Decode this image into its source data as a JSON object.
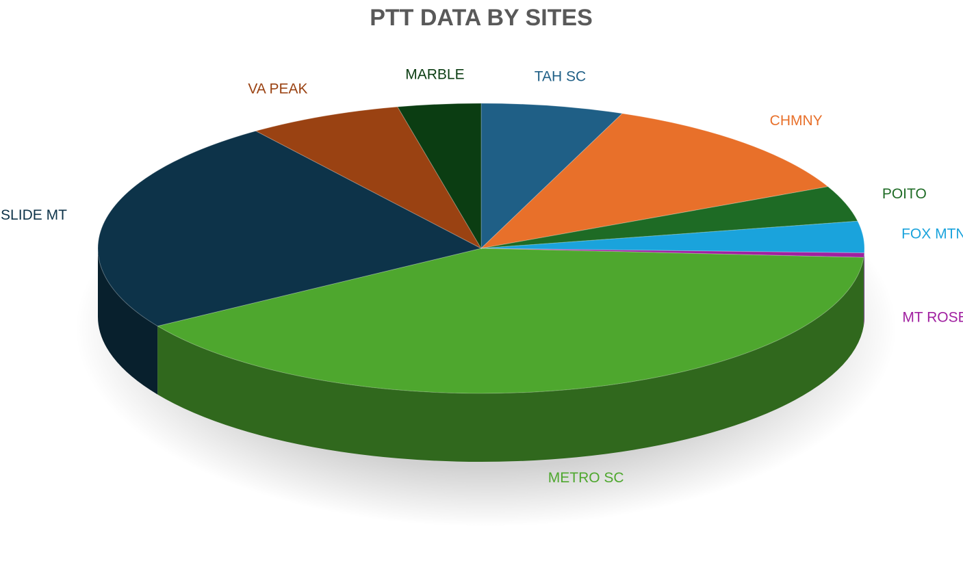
{
  "chart_data": {
    "type": "pie",
    "title": "PTT DATA BY SITES",
    "categories": [
      "TAH SC",
      "CHMNY",
      "POITO",
      "FOX MTN",
      "MT ROSE",
      "METRO SC",
      "SLIDE MT",
      "VA PEAK",
      "MARBLE"
    ],
    "values": [
      6,
      12,
      4,
      3.5,
      0.5,
      40,
      24,
      6.5,
      3.5
    ],
    "colors": [
      "#1f5f86",
      "#e8702a",
      "#1e6b25",
      "#1aa3dc",
      "#a020a0",
      "#4ea72e",
      "#0d3349",
      "#9a4212",
      "#0b3d12"
    ]
  }
}
